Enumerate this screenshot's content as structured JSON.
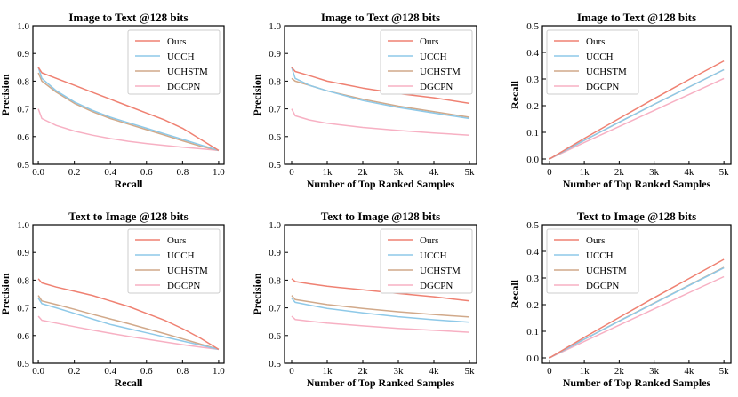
{
  "figure": {
    "legend_labels": [
      "Ours",
      "UCCH",
      "UCHSTM",
      "DGCPN"
    ],
    "colors": {
      "Ours": "#ef8172",
      "UCCH": "#8ec9e8",
      "UCHSTM": "#d1a98a",
      "DGCPN": "#f7b0c3"
    }
  },
  "chart_data": [
    {
      "type": "line",
      "title": "Image to Text @128 bits",
      "xlabel": "Recall",
      "ylabel": "Precision",
      "xlim": [
        -0.03,
        1.03
      ],
      "ylim": [
        0.5,
        1.0
      ],
      "xticks": [
        0.0,
        0.2,
        0.4,
        0.6,
        0.8,
        1.0
      ],
      "xtick_labels": [
        "0.0",
        "0.2",
        "0.4",
        "0.6",
        "0.8",
        "1.0"
      ],
      "yticks": [
        0.5,
        0.6,
        0.7,
        0.8,
        0.9,
        1.0
      ],
      "ytick_labels": [
        "0.5",
        "0.6",
        "0.7",
        "0.8",
        "0.9",
        "1.0"
      ],
      "legend": "top-right",
      "series": [
        {
          "name": "Ours",
          "x": [
            0.0,
            0.02,
            0.1,
            0.2,
            0.3,
            0.4,
            0.5,
            0.6,
            0.7,
            0.8,
            0.9,
            1.0
          ],
          "values": [
            0.85,
            0.83,
            0.81,
            0.785,
            0.76,
            0.735,
            0.71,
            0.685,
            0.66,
            0.63,
            0.59,
            0.55
          ]
        },
        {
          "name": "UCCH",
          "x": [
            0.0,
            0.02,
            0.1,
            0.2,
            0.3,
            0.4,
            0.5,
            0.6,
            0.7,
            0.8,
            0.9,
            1.0
          ],
          "values": [
            0.85,
            0.81,
            0.765,
            0.725,
            0.695,
            0.67,
            0.65,
            0.63,
            0.61,
            0.59,
            0.57,
            0.55
          ]
        },
        {
          "name": "UCHSTM",
          "x": [
            0.0,
            0.02,
            0.1,
            0.2,
            0.3,
            0.4,
            0.5,
            0.6,
            0.7,
            0.8,
            0.9,
            1.0
          ],
          "values": [
            0.83,
            0.8,
            0.76,
            0.72,
            0.69,
            0.665,
            0.645,
            0.625,
            0.605,
            0.585,
            0.565,
            0.55
          ]
        },
        {
          "name": "DGCPN",
          "x": [
            0.0,
            0.02,
            0.1,
            0.2,
            0.3,
            0.4,
            0.5,
            0.6,
            0.7,
            0.8,
            0.9,
            1.0
          ],
          "values": [
            0.7,
            0.665,
            0.64,
            0.62,
            0.605,
            0.593,
            0.583,
            0.575,
            0.568,
            0.562,
            0.556,
            0.55
          ]
        }
      ]
    },
    {
      "type": "line",
      "title": "Image to Text @128 bits",
      "xlabel": "Number of Top Ranked Samples",
      "ylabel": "Precision",
      "xlim": [
        -200,
        5200
      ],
      "ylim": [
        0.5,
        1.0
      ],
      "xticks": [
        0,
        1000,
        2000,
        3000,
        4000,
        5000
      ],
      "xtick_labels": [
        "0",
        "1k",
        "2k",
        "3k",
        "4k",
        "5k"
      ],
      "yticks": [
        0.5,
        0.6,
        0.7,
        0.8,
        0.9,
        1.0
      ],
      "ytick_labels": [
        "0.5",
        "0.6",
        "0.7",
        "0.8",
        "0.9",
        "1.0"
      ],
      "legend": "top-right",
      "series": [
        {
          "name": "Ours",
          "x": [
            0,
            100,
            500,
            1000,
            2000,
            3000,
            4000,
            5000
          ],
          "values": [
            0.85,
            0.835,
            0.82,
            0.8,
            0.775,
            0.755,
            0.74,
            0.72
          ]
        },
        {
          "name": "UCCH",
          "x": [
            0,
            100,
            500,
            1000,
            2000,
            3000,
            4000,
            5000
          ],
          "values": [
            0.85,
            0.81,
            0.785,
            0.765,
            0.73,
            0.705,
            0.685,
            0.665
          ]
        },
        {
          "name": "UCHSTM",
          "x": [
            0,
            100,
            500,
            1000,
            2000,
            3000,
            4000,
            5000
          ],
          "values": [
            0.81,
            0.8,
            0.785,
            0.765,
            0.735,
            0.71,
            0.69,
            0.67
          ]
        },
        {
          "name": "DGCPN",
          "x": [
            0,
            100,
            500,
            1000,
            2000,
            3000,
            4000,
            5000
          ],
          "values": [
            0.7,
            0.675,
            0.66,
            0.648,
            0.633,
            0.622,
            0.613,
            0.605
          ]
        }
      ]
    },
    {
      "type": "line",
      "title": "Image to Text @128 bits",
      "xlabel": "Number of Top Ranked Samples",
      "ylabel": "Recall",
      "xlim": [
        -200,
        5200
      ],
      "ylim": [
        -0.02,
        0.5
      ],
      "xticks": [
        0,
        1000,
        2000,
        3000,
        4000,
        5000
      ],
      "xtick_labels": [
        "0",
        "1k",
        "2k",
        "3k",
        "4k",
        "5k"
      ],
      "yticks": [
        0.0,
        0.1,
        0.2,
        0.3,
        0.4,
        0.5
      ],
      "ytick_labels": [
        "0.0",
        "0.1",
        "0.2",
        "0.3",
        "0.4",
        "0.5"
      ],
      "legend": "top-left",
      "series": [
        {
          "name": "Ours",
          "x": [
            0,
            1000,
            2000,
            3000,
            4000,
            5000
          ],
          "values": [
            0.0,
            0.077,
            0.152,
            0.226,
            0.298,
            0.368
          ]
        },
        {
          "name": "UCCH",
          "x": [
            0,
            1000,
            2000,
            3000,
            4000,
            5000
          ],
          "values": [
            0.0,
            0.07,
            0.138,
            0.205,
            0.27,
            0.335
          ]
        },
        {
          "name": "UCHSTM",
          "x": [
            0,
            1000,
            2000,
            3000,
            4000,
            5000
          ],
          "values": [
            0.0,
            0.07,
            0.138,
            0.205,
            0.27,
            0.335
          ]
        },
        {
          "name": "DGCPN",
          "x": [
            0,
            1000,
            2000,
            3000,
            4000,
            5000
          ],
          "values": [
            0.0,
            0.062,
            0.122,
            0.182,
            0.242,
            0.302
          ]
        }
      ]
    },
    {
      "type": "line",
      "title": "Text to Image @128 bits",
      "xlabel": "Recall",
      "ylabel": "Precision",
      "xlim": [
        -0.03,
        1.03
      ],
      "ylim": [
        0.5,
        1.0
      ],
      "xticks": [
        0.0,
        0.2,
        0.4,
        0.6,
        0.8,
        1.0
      ],
      "xtick_labels": [
        "0.0",
        "0.2",
        "0.4",
        "0.6",
        "0.8",
        "1.0"
      ],
      "yticks": [
        0.5,
        0.6,
        0.7,
        0.8,
        0.9,
        1.0
      ],
      "ytick_labels": [
        "0.5",
        "0.6",
        "0.7",
        "0.8",
        "0.9",
        "1.0"
      ],
      "legend": "top-right",
      "series": [
        {
          "name": "Ours",
          "x": [
            0.0,
            0.02,
            0.1,
            0.2,
            0.3,
            0.4,
            0.5,
            0.6,
            0.7,
            0.8,
            0.9,
            1.0
          ],
          "values": [
            0.805,
            0.79,
            0.775,
            0.76,
            0.745,
            0.725,
            0.705,
            0.68,
            0.655,
            0.625,
            0.59,
            0.55
          ]
        },
        {
          "name": "UCCH",
          "x": [
            0.0,
            0.02,
            0.1,
            0.2,
            0.3,
            0.4,
            0.5,
            0.6,
            0.7,
            0.8,
            0.9,
            1.0
          ],
          "values": [
            0.735,
            0.715,
            0.7,
            0.68,
            0.66,
            0.64,
            0.625,
            0.61,
            0.595,
            0.58,
            0.565,
            0.55
          ]
        },
        {
          "name": "UCHSTM",
          "x": [
            0.0,
            0.02,
            0.1,
            0.2,
            0.3,
            0.4,
            0.5,
            0.6,
            0.7,
            0.8,
            0.9,
            1.0
          ],
          "values": [
            0.745,
            0.725,
            0.712,
            0.695,
            0.677,
            0.66,
            0.643,
            0.625,
            0.607,
            0.588,
            0.569,
            0.55
          ]
        },
        {
          "name": "DGCPN",
          "x": [
            0.0,
            0.02,
            0.1,
            0.2,
            0.3,
            0.4,
            0.5,
            0.6,
            0.7,
            0.8,
            0.9,
            1.0
          ],
          "values": [
            0.67,
            0.655,
            0.645,
            0.632,
            0.62,
            0.608,
            0.597,
            0.587,
            0.577,
            0.567,
            0.558,
            0.55
          ]
        }
      ]
    },
    {
      "type": "line",
      "title": "Text to Image @128 bits",
      "xlabel": "Number of Top Ranked Samples",
      "ylabel": "Precision",
      "xlim": [
        -200,
        5200
      ],
      "ylim": [
        0.5,
        1.0
      ],
      "xticks": [
        0,
        1000,
        2000,
        3000,
        4000,
        5000
      ],
      "xtick_labels": [
        "0",
        "1k",
        "2k",
        "3k",
        "4k",
        "5k"
      ],
      "yticks": [
        0.5,
        0.6,
        0.7,
        0.8,
        0.9,
        1.0
      ],
      "ytick_labels": [
        "0.5",
        "0.6",
        "0.7",
        "0.8",
        "0.9",
        "1.0"
      ],
      "legend": "top-right",
      "series": [
        {
          "name": "Ours",
          "x": [
            0,
            100,
            500,
            1000,
            2000,
            3000,
            4000,
            5000
          ],
          "values": [
            0.805,
            0.795,
            0.787,
            0.778,
            0.765,
            0.752,
            0.74,
            0.725
          ]
        },
        {
          "name": "UCCH",
          "x": [
            0,
            100,
            500,
            1000,
            2000,
            3000,
            4000,
            5000
          ],
          "values": [
            0.735,
            0.72,
            0.71,
            0.698,
            0.682,
            0.668,
            0.657,
            0.648
          ]
        },
        {
          "name": "UCHSTM",
          "x": [
            0,
            100,
            500,
            1000,
            2000,
            3000,
            4000,
            5000
          ],
          "values": [
            0.745,
            0.73,
            0.722,
            0.712,
            0.698,
            0.686,
            0.676,
            0.667
          ]
        },
        {
          "name": "DGCPN",
          "x": [
            0,
            100,
            500,
            1000,
            2000,
            3000,
            4000,
            5000
          ],
          "values": [
            0.67,
            0.658,
            0.652,
            0.645,
            0.635,
            0.626,
            0.619,
            0.612
          ]
        }
      ]
    },
    {
      "type": "line",
      "title": "Text to Image @128 bits",
      "xlabel": "Number of Top Ranked Samples",
      "ylabel": "Recall",
      "xlim": [
        -200,
        5200
      ],
      "ylim": [
        -0.02,
        0.5
      ],
      "xticks": [
        0,
        1000,
        2000,
        3000,
        4000,
        5000
      ],
      "xtick_labels": [
        "0",
        "1k",
        "2k",
        "3k",
        "4k",
        "5k"
      ],
      "yticks": [
        0.0,
        0.1,
        0.2,
        0.3,
        0.4,
        0.5
      ],
      "ytick_labels": [
        "0.0",
        "0.1",
        "0.2",
        "0.3",
        "0.4",
        "0.5"
      ],
      "legend": "top-left",
      "series": [
        {
          "name": "Ours",
          "x": [
            0,
            1000,
            2000,
            3000,
            4000,
            5000
          ],
          "values": [
            0.0,
            0.077,
            0.152,
            0.226,
            0.298,
            0.37
          ]
        },
        {
          "name": "UCCH",
          "x": [
            0,
            1000,
            2000,
            3000,
            4000,
            5000
          ],
          "values": [
            0.0,
            0.07,
            0.138,
            0.205,
            0.272,
            0.338
          ]
        },
        {
          "name": "UCHSTM",
          "x": [
            0,
            1000,
            2000,
            3000,
            4000,
            5000
          ],
          "values": [
            0.0,
            0.07,
            0.139,
            0.206,
            0.273,
            0.34
          ]
        },
        {
          "name": "DGCPN",
          "x": [
            0,
            1000,
            2000,
            3000,
            4000,
            5000
          ],
          "values": [
            0.0,
            0.062,
            0.123,
            0.184,
            0.245,
            0.305
          ]
        }
      ]
    }
  ]
}
